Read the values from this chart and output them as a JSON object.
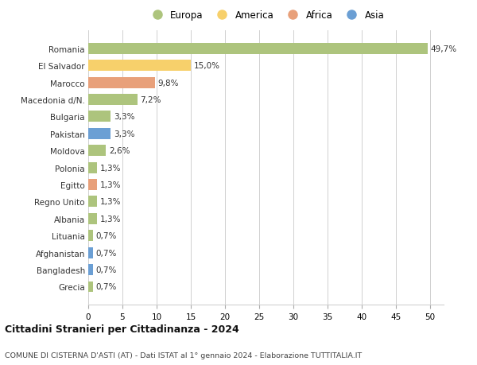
{
  "countries": [
    "Romania",
    "El Salvador",
    "Marocco",
    "Macedonia d/N.",
    "Bulgaria",
    "Pakistan",
    "Moldova",
    "Polonia",
    "Egitto",
    "Regno Unito",
    "Albania",
    "Lituania",
    "Afghanistan",
    "Bangladesh",
    "Grecia"
  ],
  "values": [
    49.7,
    15.0,
    9.8,
    7.2,
    3.3,
    3.3,
    2.6,
    1.3,
    1.3,
    1.3,
    1.3,
    0.7,
    0.7,
    0.7,
    0.7
  ],
  "labels": [
    "49,7%",
    "15,0%",
    "9,8%",
    "7,2%",
    "3,3%",
    "3,3%",
    "2,6%",
    "1,3%",
    "1,3%",
    "1,3%",
    "1,3%",
    "0,7%",
    "0,7%",
    "0,7%",
    "0,7%"
  ],
  "continents": [
    "Europa",
    "America",
    "Africa",
    "Europa",
    "Europa",
    "Asia",
    "Europa",
    "Europa",
    "Africa",
    "Europa",
    "Europa",
    "Europa",
    "Asia",
    "Asia",
    "Europa"
  ],
  "continent_colors": {
    "Europa": "#adc47d",
    "America": "#f7d06b",
    "Africa": "#e8a07a",
    "Asia": "#6b9fd4"
  },
  "legend_order": [
    "Europa",
    "America",
    "Africa",
    "Asia"
  ],
  "xlim": [
    0,
    52
  ],
  "xticks": [
    0,
    5,
    10,
    15,
    20,
    25,
    30,
    35,
    40,
    45,
    50
  ],
  "title_main": "Cittadini Stranieri per Cittadinanza - 2024",
  "title_sub": "COMUNE DI CISTERNA D'ASTI (AT) - Dati ISTAT al 1° gennaio 2024 - Elaborazione TUTTITALIA.IT",
  "background_color": "#ffffff",
  "grid_color": "#d0d0d0",
  "bar_height": 0.65,
  "label_fontsize": 7.5,
  "tick_fontsize": 7.5,
  "legend_fontsize": 8.5
}
